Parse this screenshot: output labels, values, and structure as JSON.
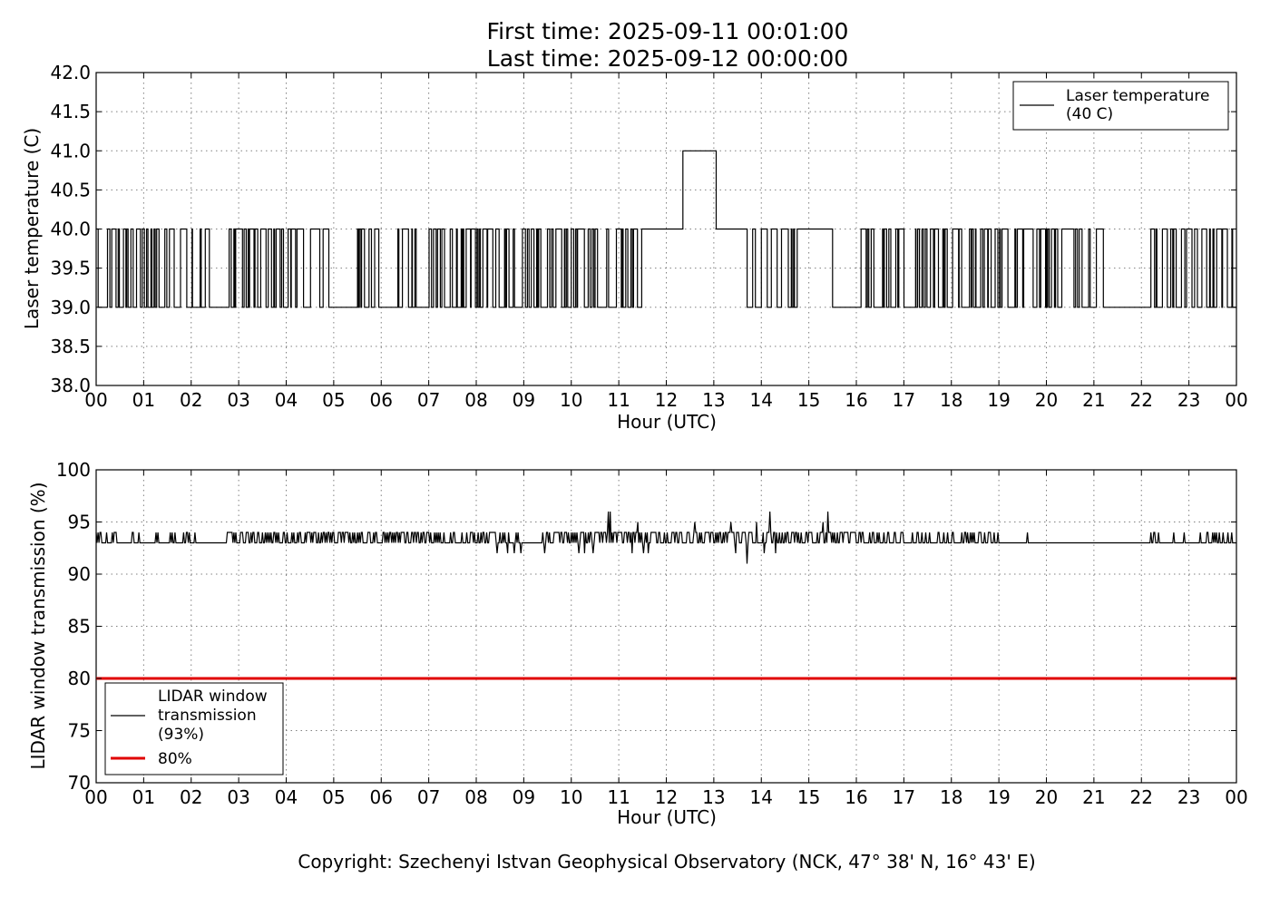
{
  "header": {
    "title_line1": "First time: 2025-09-11 00:01:00",
    "title_line2": "Last time: 2025-09-12 00:00:00"
  },
  "footer": {
    "copyright": "Copyright: Szechenyi Istvan Geophysical Observatory (NCK, 47° 38' N, 16° 43' E)"
  },
  "chart_data": [
    {
      "type": "line",
      "title": "",
      "xlabel": "Hour (UTC)",
      "ylabel": "Laser temperature (C)",
      "xlim": [
        0,
        24
      ],
      "ylim": [
        38.0,
        42.0
      ],
      "x_ticks": [
        "00",
        "01",
        "02",
        "03",
        "04",
        "05",
        "06",
        "07",
        "08",
        "09",
        "10",
        "11",
        "12",
        "13",
        "14",
        "15",
        "16",
        "17",
        "18",
        "19",
        "20",
        "21",
        "22",
        "23",
        "00"
      ],
      "y_ticks": [
        "38.0",
        "38.5",
        "39.0",
        "39.5",
        "40.0",
        "40.5",
        "41.0",
        "41.5",
        "42.0"
      ],
      "grid": true,
      "legend_position": "top-right",
      "series": [
        {
          "name": "Laser temperature\n(40 C)",
          "legend_lines": [
            "Laser temperature",
            "(40 C)"
          ],
          "color": "#000000",
          "description": "step signal toggling between 39 and 40 C",
          "segments": [
            {
              "x_start": 0.0,
              "x_end": 0.85,
              "mode": "toggle",
              "low": 39,
              "high": 40
            },
            {
              "x_start": 0.85,
              "x_end": 1.6,
              "mode": "toggle",
              "low": 39,
              "high": 40
            },
            {
              "x_start": 1.6,
              "x_end": 2.4,
              "mode": "toggle",
              "low": 39,
              "high": 40
            },
            {
              "x_start": 2.4,
              "x_end": 2.8,
              "mode": "flat",
              "value": 39
            },
            {
              "x_start": 2.8,
              "x_end": 4.95,
              "mode": "toggle",
              "low": 39,
              "high": 40
            },
            {
              "x_start": 4.95,
              "x_end": 5.5,
              "mode": "flat",
              "value": 39
            },
            {
              "x_start": 5.5,
              "x_end": 6.0,
              "mode": "toggle",
              "low": 39,
              "high": 40
            },
            {
              "x_start": 6.0,
              "x_end": 6.35,
              "mode": "flat",
              "value": 39
            },
            {
              "x_start": 6.35,
              "x_end": 10.95,
              "mode": "toggle",
              "low": 39,
              "high": 40
            },
            {
              "x_start": 10.95,
              "x_end": 11.55,
              "mode": "toggle",
              "low": 39,
              "high": 40
            },
            {
              "x_start": 11.55,
              "x_end": 12.35,
              "mode": "flat",
              "value": 40
            },
            {
              "x_start": 12.35,
              "x_end": 13.05,
              "mode": "flat",
              "value": 41
            },
            {
              "x_start": 13.05,
              "x_end": 13.65,
              "mode": "flat",
              "value": 40
            },
            {
              "x_start": 13.65,
              "x_end": 14.8,
              "mode": "toggle",
              "low": 39,
              "high": 40
            },
            {
              "x_start": 14.8,
              "x_end": 15.5,
              "mode": "flat",
              "value": 40
            },
            {
              "x_start": 15.5,
              "x_end": 16.1,
              "mode": "flat",
              "value": 39
            },
            {
              "x_start": 16.1,
              "x_end": 19.9,
              "mode": "toggle",
              "low": 39,
              "high": 40
            },
            {
              "x_start": 19.9,
              "x_end": 21.2,
              "mode": "toggle",
              "low": 39,
              "high": 40
            },
            {
              "x_start": 21.2,
              "x_end": 22.2,
              "mode": "flat",
              "value": 39
            },
            {
              "x_start": 22.2,
              "x_end": 24.0,
              "mode": "toggle",
              "low": 39,
              "high": 40
            }
          ]
        }
      ]
    },
    {
      "type": "line",
      "title": "",
      "xlabel": "Hour (UTC)",
      "ylabel": "LIDAR window transmission (%)",
      "xlim": [
        0,
        24
      ],
      "ylim": [
        70,
        100
      ],
      "x_ticks": [
        "00",
        "01",
        "02",
        "03",
        "04",
        "05",
        "06",
        "07",
        "08",
        "09",
        "10",
        "11",
        "12",
        "13",
        "14",
        "15",
        "16",
        "17",
        "18",
        "19",
        "20",
        "21",
        "22",
        "23",
        "00"
      ],
      "y_ticks": [
        "70",
        "75",
        "80",
        "85",
        "90",
        "95",
        "100"
      ],
      "grid": true,
      "legend_position": "bottom-left",
      "series": [
        {
          "name": "LIDAR window\ntransmission\n(93%)",
          "legend_lines": [
            "LIDAR window",
            "transmission",
            "(93%)"
          ],
          "color": "#000000",
          "baseline": 93,
          "description": "mostly 93% with frequent jumps to 94%, occasional dips to 92% and spikes",
          "activity": [
            {
              "x_start": 0.0,
              "x_end": 0.95,
              "density": 0.25
            },
            {
              "x_start": 1.2,
              "x_end": 2.2,
              "density": 0.25
            },
            {
              "x_start": 2.75,
              "x_end": 8.9,
              "density": 0.45
            },
            {
              "x_start": 9.4,
              "x_end": 16.9,
              "density": 0.5
            },
            {
              "x_start": 16.9,
              "x_end": 19.0,
              "density": 0.3
            },
            {
              "x_start": 22.2,
              "x_end": 24.0,
              "density": 0.12
            }
          ],
          "events": [
            {
              "x": 8.45,
              "value": 92
            },
            {
              "x": 8.65,
              "value": 92
            },
            {
              "x": 8.8,
              "value": 92
            },
            {
              "x": 8.93,
              "value": 92
            },
            {
              "x": 9.45,
              "value": 92
            },
            {
              "x": 10.15,
              "value": 92
            },
            {
              "x": 10.28,
              "value": 92
            },
            {
              "x": 10.45,
              "value": 92
            },
            {
              "x": 10.78,
              "value": 96
            },
            {
              "x": 10.82,
              "value": 96
            },
            {
              "x": 11.28,
              "value": 92
            },
            {
              "x": 11.4,
              "value": 95
            },
            {
              "x": 11.52,
              "value": 92
            },
            {
              "x": 11.62,
              "value": 92
            },
            {
              "x": 12.6,
              "value": 95
            },
            {
              "x": 13.35,
              "value": 95
            },
            {
              "x": 13.45,
              "value": 92
            },
            {
              "x": 13.7,
              "value": 91
            },
            {
              "x": 13.9,
              "value": 95
            },
            {
              "x": 14.05,
              "value": 92
            },
            {
              "x": 14.18,
              "value": 96
            },
            {
              "x": 14.3,
              "value": 92
            },
            {
              "x": 15.3,
              "value": 95
            },
            {
              "x": 15.4,
              "value": 96
            },
            {
              "x": 19.6,
              "value": 94
            },
            {
              "x": 22.35,
              "value": 94
            },
            {
              "x": 22.9,
              "value": 94
            },
            {
              "x": 23.4,
              "value": 94
            }
          ]
        },
        {
          "name": "80%",
          "legend_lines": [
            "80%"
          ],
          "color": "#e00000",
          "x": [
            0,
            24
          ],
          "values": [
            80,
            80
          ]
        }
      ]
    }
  ]
}
